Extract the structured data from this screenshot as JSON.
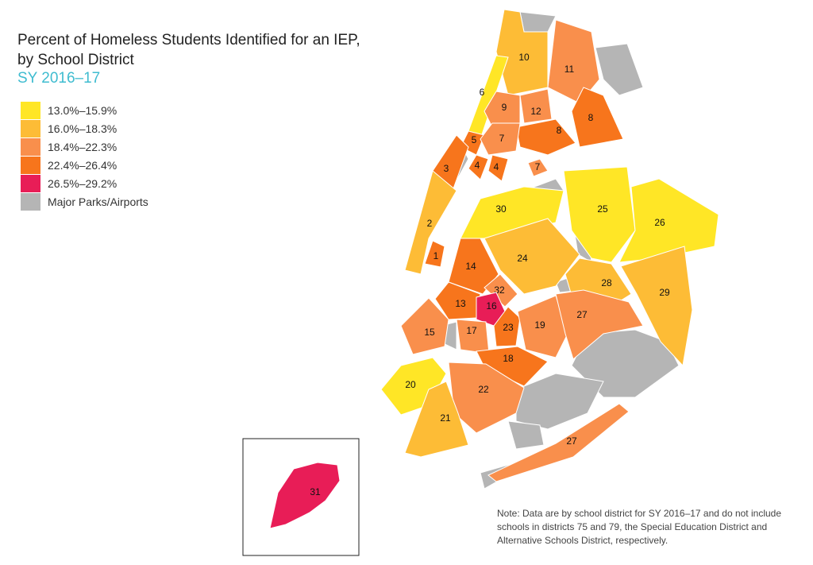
{
  "title_lines": [
    "Percent of Homeless Students Identified for an IEP,",
    "by School District"
  ],
  "subtitle": "SY 2016–17",
  "legend": [
    {
      "label": "13.0%–15.9%",
      "color": "#ffe626"
    },
    {
      "label": "16.0%–18.3%",
      "color": "#fdbc36"
    },
    {
      "label": "18.4%–22.3%",
      "color": "#f98f4c"
    },
    {
      "label": "22.4%–26.4%",
      "color": "#f7751c"
    },
    {
      "label": "26.5%–29.2%",
      "color": "#e81d57"
    },
    {
      "label": "Major Parks/Airports",
      "color": "#b5b5b5"
    }
  ],
  "districts": [
    {
      "label": "10",
      "color": "#fdbc36"
    },
    {
      "label": "11",
      "color": "#f98f4c"
    },
    {
      "label": "6",
      "color": "#ffe626"
    },
    {
      "label": "9",
      "color": "#f98f4c"
    },
    {
      "label": "12",
      "color": "#f98f4c"
    },
    {
      "label": "8",
      "color": "#f7751c"
    },
    {
      "label": "8",
      "color": "#f7751c"
    },
    {
      "label": "5",
      "color": "#f7751c"
    },
    {
      "label": "7",
      "color": "#f98f4c"
    },
    {
      "label": "3",
      "color": "#f7751c"
    },
    {
      "label": "4",
      "color": "#f7751c"
    },
    {
      "label": "4",
      "color": "#f7751c"
    },
    {
      "label": "7",
      "color": "#f98f4c"
    },
    {
      "label": "30",
      "color": "#ffe626"
    },
    {
      "label": "25",
      "color": "#ffe626"
    },
    {
      "label": "26",
      "color": "#ffe626"
    },
    {
      "label": "2",
      "color": "#fdbc36"
    },
    {
      "label": "24",
      "color": "#fdbc36"
    },
    {
      "label": "1",
      "color": "#f7751c"
    },
    {
      "label": "14",
      "color": "#f7751c"
    },
    {
      "label": "32",
      "color": "#f98f4c"
    },
    {
      "label": "28",
      "color": "#fdbc36"
    },
    {
      "label": "29",
      "color": "#fdbc36"
    },
    {
      "label": "13",
      "color": "#f7751c"
    },
    {
      "label": "16",
      "color": "#e81d57"
    },
    {
      "label": "15",
      "color": "#f98f4c"
    },
    {
      "label": "17",
      "color": "#f98f4c"
    },
    {
      "label": "23",
      "color": "#f7751c"
    },
    {
      "label": "19",
      "color": "#f98f4c"
    },
    {
      "label": "27",
      "color": "#f98f4c"
    },
    {
      "label": "18",
      "color": "#f7751c"
    },
    {
      "label": "20",
      "color": "#ffe626"
    },
    {
      "label": "22",
      "color": "#f98f4c"
    },
    {
      "label": "21",
      "color": "#fdbc36"
    },
    {
      "label": "27",
      "color": "#f98f4c"
    },
    {
      "label": "31",
      "color": "#e81d57"
    }
  ],
  "parks_color": "#b5b5b5",
  "note": "Note: Data are by school district for SY 2016–17 and do not include schools in districts 75 and 79, the Special Education District and Alternative Schools District, respectively."
}
